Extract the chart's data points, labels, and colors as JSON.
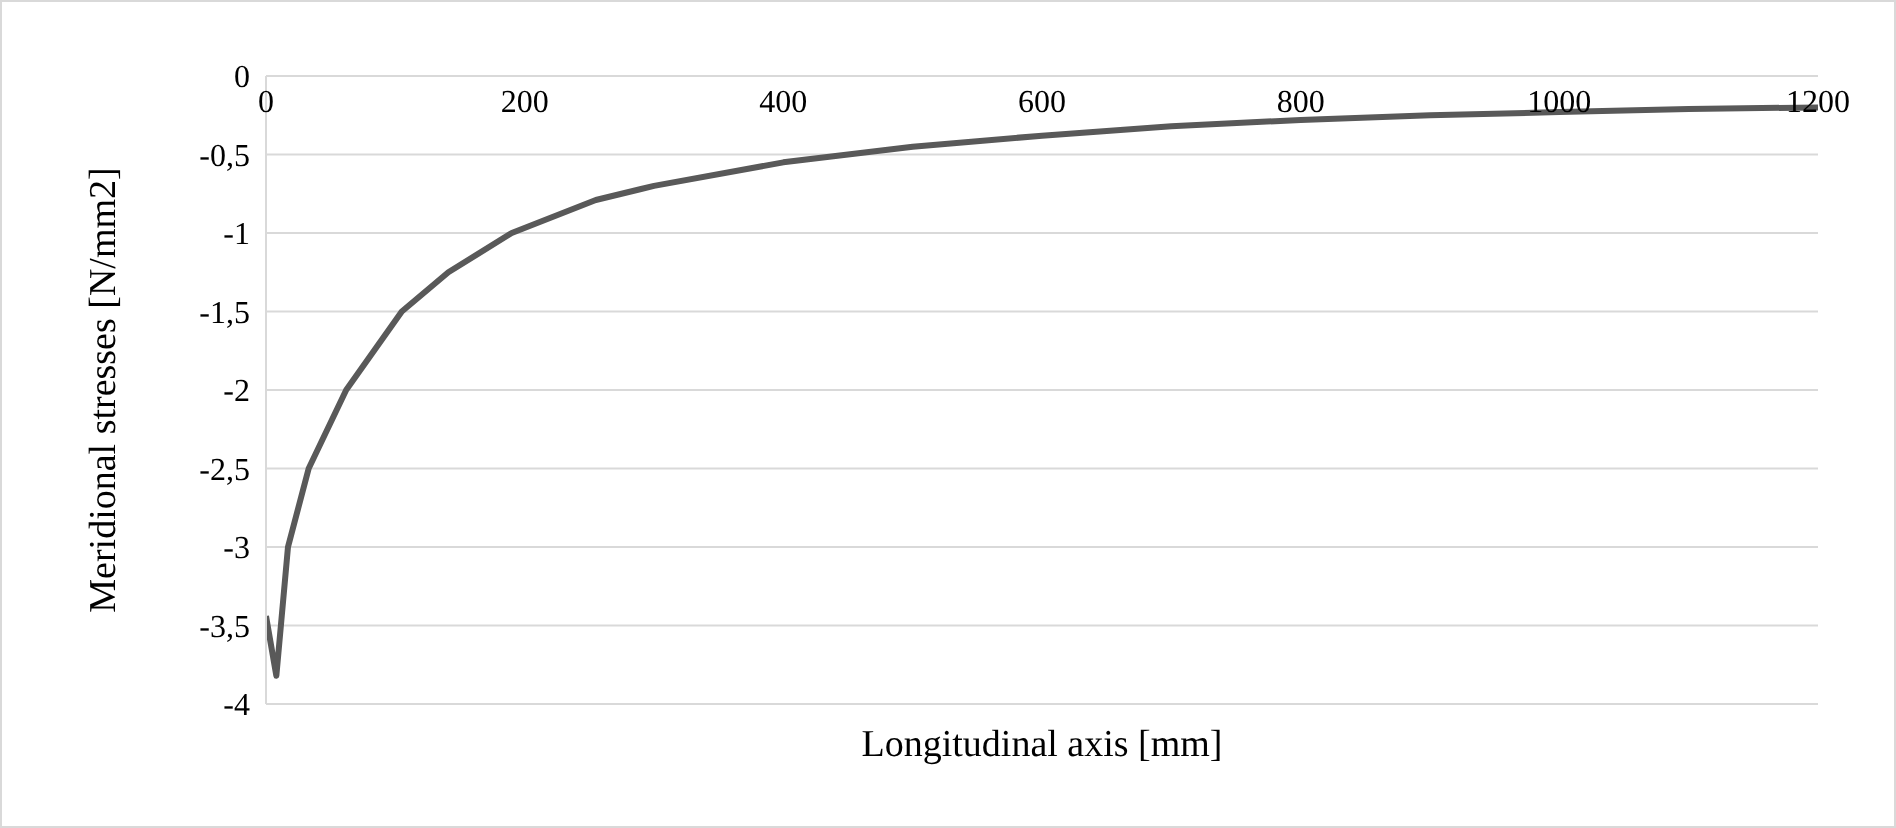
{
  "chart_data": {
    "type": "line",
    "xlabel": "Longitudinal axis [mm]",
    "ylabel": "Meridional stresses [N/mm2]",
    "x": [
      0,
      8,
      17,
      33,
      62,
      105,
      141,
      190,
      255,
      290,
      300,
      400,
      500,
      600,
      700,
      800,
      900,
      1000,
      1100,
      1200
    ],
    "series": [
      {
        "color": "#595959",
        "values": [
          -3.44,
          -3.82,
          -3.0,
          -2.5,
          -2.0,
          -1.5,
          -1.25,
          -1.0,
          -0.79,
          -0.72,
          -0.7,
          -0.55,
          -0.45,
          -0.38,
          -0.32,
          -0.28,
          -0.25,
          -0.23,
          -0.21,
          -0.2
        ]
      }
    ],
    "xlim": [
      0,
      1200
    ],
    "xticks": [
      0,
      200,
      400,
      600,
      800,
      1000,
      1200
    ],
    "ylim": [
      -4,
      0
    ],
    "yticks": [
      0,
      {
        "value": -0.5,
        "label": "-0,5"
      },
      -1,
      {
        "value": -1.5,
        "label": "-1,5"
      },
      -2,
      {
        "value": -2.5,
        "label": "-2,5"
      },
      -3,
      {
        "value": -3.5,
        "label": "-3,5"
      },
      -4
    ],
    "grid": "y",
    "legend": false,
    "marker": "none",
    "line_style": "solid"
  }
}
